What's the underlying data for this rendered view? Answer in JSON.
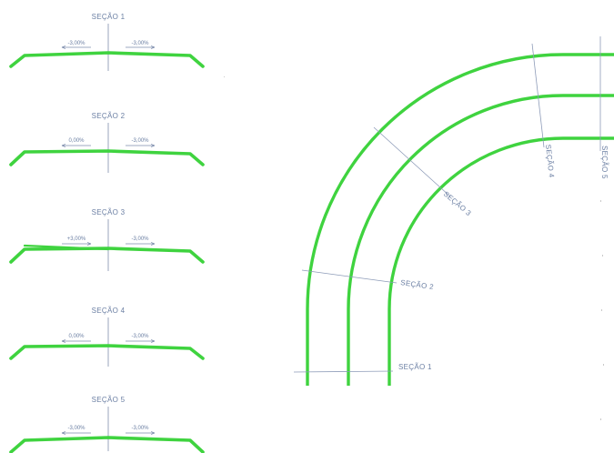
{
  "sections": [
    {
      "title": "SEÇÃO 1",
      "left_slope": "-3,00%",
      "right_slope": "-3,00%",
      "left_arrow": "left",
      "right_arrow": "right"
    },
    {
      "title": "SEÇÃO 2",
      "left_slope": "0,00%",
      "right_slope": "-3,00%",
      "left_arrow": "left",
      "right_arrow": "right"
    },
    {
      "title": "SEÇÃO 3",
      "left_slope": "+3,00%",
      "right_slope": "-3,00%",
      "left_arrow": "right",
      "right_arrow": "right"
    },
    {
      "title": "SEÇÃO 4",
      "left_slope": "0,00%",
      "right_slope": "-3,00%",
      "left_arrow": "left",
      "right_arrow": "right"
    },
    {
      "title": "SEÇÃO 5",
      "left_slope": "-3,00%",
      "right_slope": "-3,00%",
      "left_arrow": "left",
      "right_arrow": "right"
    }
  ],
  "plan_labels": {
    "s1": "SEÇÃO 1",
    "s2": "SEÇÃO 2",
    "s3": "SEÇÃO 3",
    "s4": "SEÇÃO 4",
    "s5": "SEÇÃO 5"
  },
  "colors": {
    "road": "#3fd33f",
    "annotation": "#6b7fa3",
    "background": "#ffffff"
  }
}
